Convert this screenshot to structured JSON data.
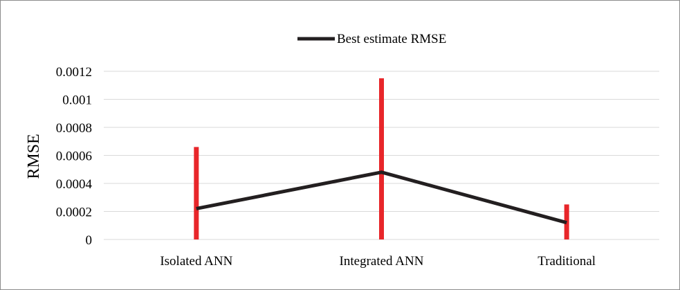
{
  "chart_data": {
    "type": "line",
    "title": "",
    "xlabel": "",
    "ylabel": "RMSE",
    "ylim": [
      0,
      0.0012
    ],
    "yticks": [
      "0",
      "0.0002",
      "0.0004",
      "0.0006",
      "0.0008",
      "0.001",
      "0.0012"
    ],
    "ytick_values": [
      0,
      0.0002,
      0.0004,
      0.0006,
      0.0008,
      0.001,
      0.0012
    ],
    "categories": [
      "Isolated ANN",
      "Integrated ANN",
      "Traditional"
    ],
    "grid": true,
    "legend_position": "top",
    "series": [
      {
        "name": "Best estimate RMSE",
        "values": [
          0.00022,
          0.00048,
          0.00012
        ],
        "color": "#231f20"
      }
    ],
    "error_bars": {
      "color": "#e8262a",
      "ranges": [
        [
          0,
          0.00066
        ],
        [
          0,
          0.00115
        ],
        [
          0,
          0.00025
        ]
      ]
    }
  }
}
